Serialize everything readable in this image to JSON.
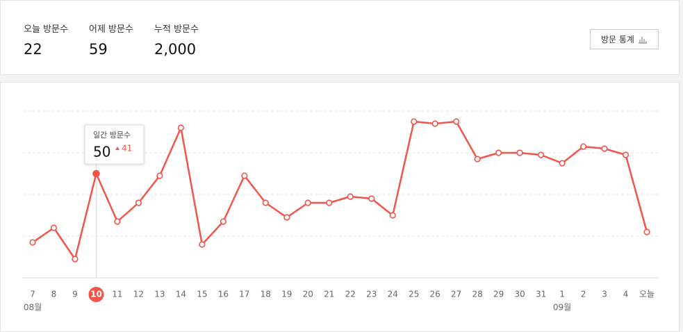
{
  "stats": [
    {
      "label": "오늘 방문수",
      "value": "22"
    },
    {
      "label": "어제 방문수",
      "value": "59"
    },
    {
      "label": "누적 방문수",
      "value": "2,000"
    }
  ],
  "button": "방문 통계",
  "chart_data": {
    "type": "line",
    "categories": [
      "7",
      "8",
      "9",
      "10",
      "11",
      "12",
      "13",
      "14",
      "15",
      "16",
      "17",
      "18",
      "19",
      "20",
      "21",
      "22",
      "23",
      "24",
      "25",
      "26",
      "27",
      "28",
      "29",
      "30",
      "31",
      "1",
      "2",
      "3",
      "4",
      "오늘"
    ],
    "months": [
      "08월",
      null,
      null,
      null,
      null,
      null,
      null,
      null,
      null,
      null,
      null,
      null,
      null,
      null,
      null,
      null,
      null,
      null,
      null,
      null,
      null,
      null,
      null,
      null,
      null,
      "09월",
      null,
      null,
      null,
      null
    ],
    "values": [
      17,
      24,
      9,
      50,
      27,
      36,
      49,
      72,
      16,
      27,
      49,
      36,
      29,
      36,
      36,
      39,
      38,
      30,
      75,
      74,
      75,
      57,
      60,
      60,
      59,
      55,
      63,
      62,
      59,
      22
    ],
    "color": "#f4544a",
    "ylim": [
      0,
      80
    ],
    "yticks": [
      0,
      20,
      40,
      60,
      80
    ],
    "grid": true,
    "tooltip": {
      "label": "일간 방문수",
      "value": 50,
      "delta": 41
    }
  }
}
